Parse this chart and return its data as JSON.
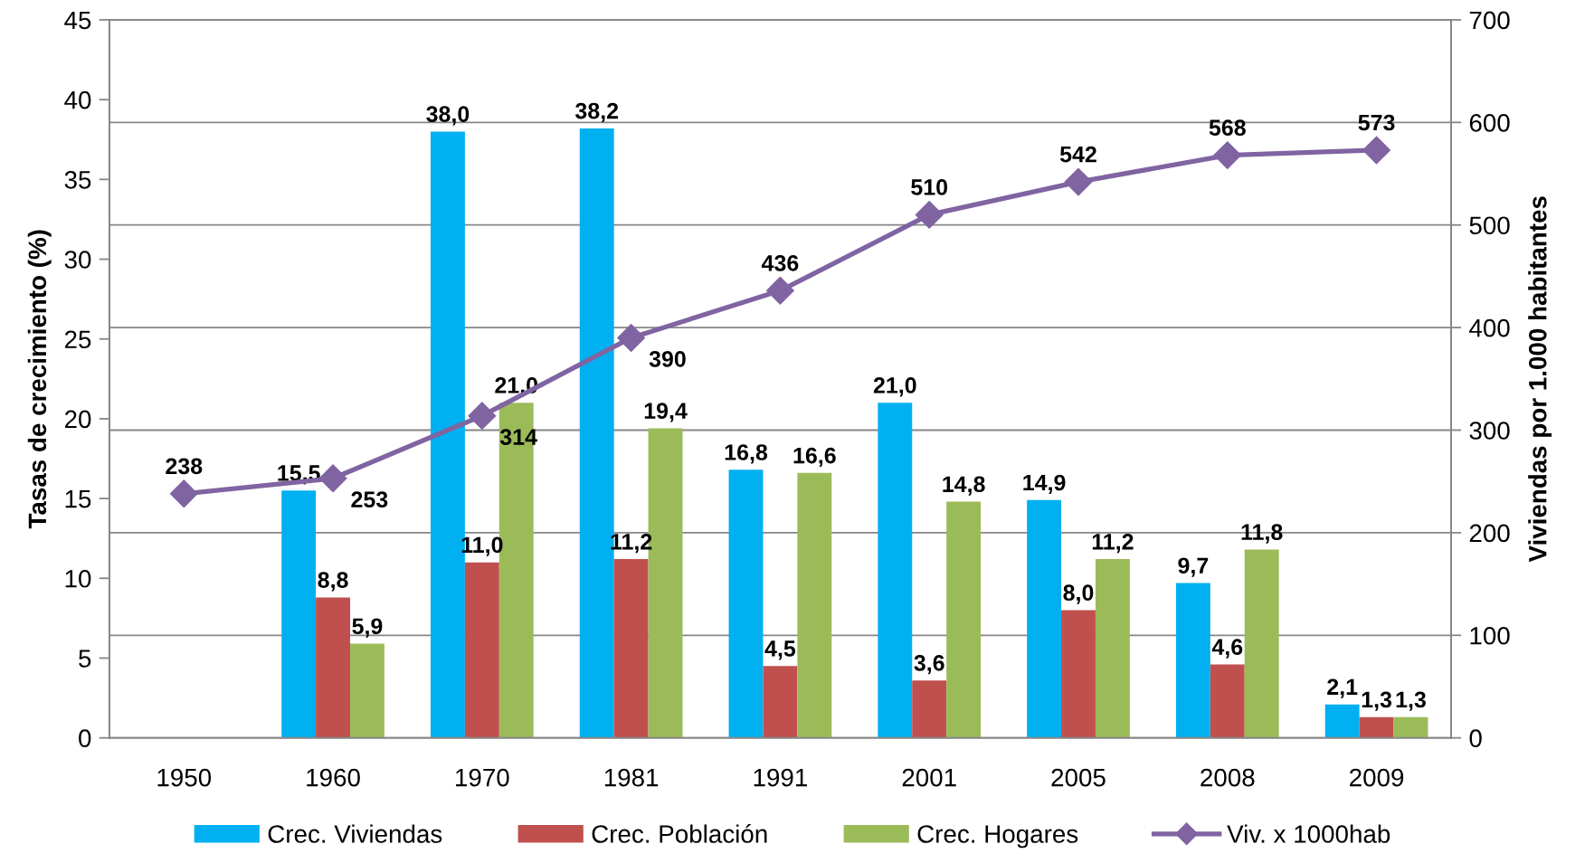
{
  "chart_data": {
    "type": "bar",
    "categories": [
      "1950",
      "1960",
      "1970",
      "1981",
      "1991",
      "2001",
      "2005",
      "2008",
      "2009"
    ],
    "ylabel": "Tasas de crecimiento (%)",
    "y2label": "Viviendas por 1.000 habitantes",
    "ylim": [
      0,
      45
    ],
    "yticks": [
      0,
      5,
      10,
      15,
      20,
      25,
      30,
      35,
      40,
      45
    ],
    "y2lim": [
      0,
      700
    ],
    "y2ticks": [
      0,
      100,
      200,
      300,
      400,
      500,
      600,
      700
    ],
    "grid": "y2",
    "legend": "bottom",
    "marker": "diamond",
    "line_style": "solid",
    "series": [
      {
        "name": "Crec. Viviendas",
        "color": "#00b0f0",
        "values": [
          null,
          15.5,
          38.0,
          38.2,
          16.8,
          21.0,
          14.9,
          9.7,
          2.1
        ],
        "value_labels": [
          null,
          "15,5",
          "38,0",
          "38,2",
          "16,8",
          "21,0",
          "14,9",
          "9,7",
          "2,1"
        ]
      },
      {
        "name": "Crec. Población",
        "color": "#c0504d",
        "values": [
          null,
          8.8,
          11.0,
          11.2,
          4.5,
          3.6,
          8.0,
          4.6,
          1.3
        ],
        "value_labels": [
          null,
          "8,8",
          "11,0",
          "11,2",
          "4,5",
          "3,6",
          "8,0",
          "4,6",
          "1,3"
        ]
      },
      {
        "name": "Crec. Hogares",
        "color": "#9bbb59",
        "values": [
          null,
          5.9,
          21.0,
          19.4,
          16.6,
          14.8,
          11.2,
          11.8,
          1.3
        ],
        "value_labels": [
          null,
          "5,9",
          "21,0",
          "19,4",
          "16,6",
          "14,8",
          "11,2",
          "11,8",
          "1,3"
        ]
      },
      {
        "name": "Viv. x 1000hab",
        "type": "line",
        "axis": "y2",
        "color": "#8064a2",
        "values": [
          238,
          253,
          314,
          390,
          436,
          510,
          542,
          568,
          573
        ],
        "value_labels": [
          "238",
          "253",
          "314",
          "390",
          "436",
          "510",
          "542",
          "568",
          "573"
        ]
      }
    ]
  }
}
